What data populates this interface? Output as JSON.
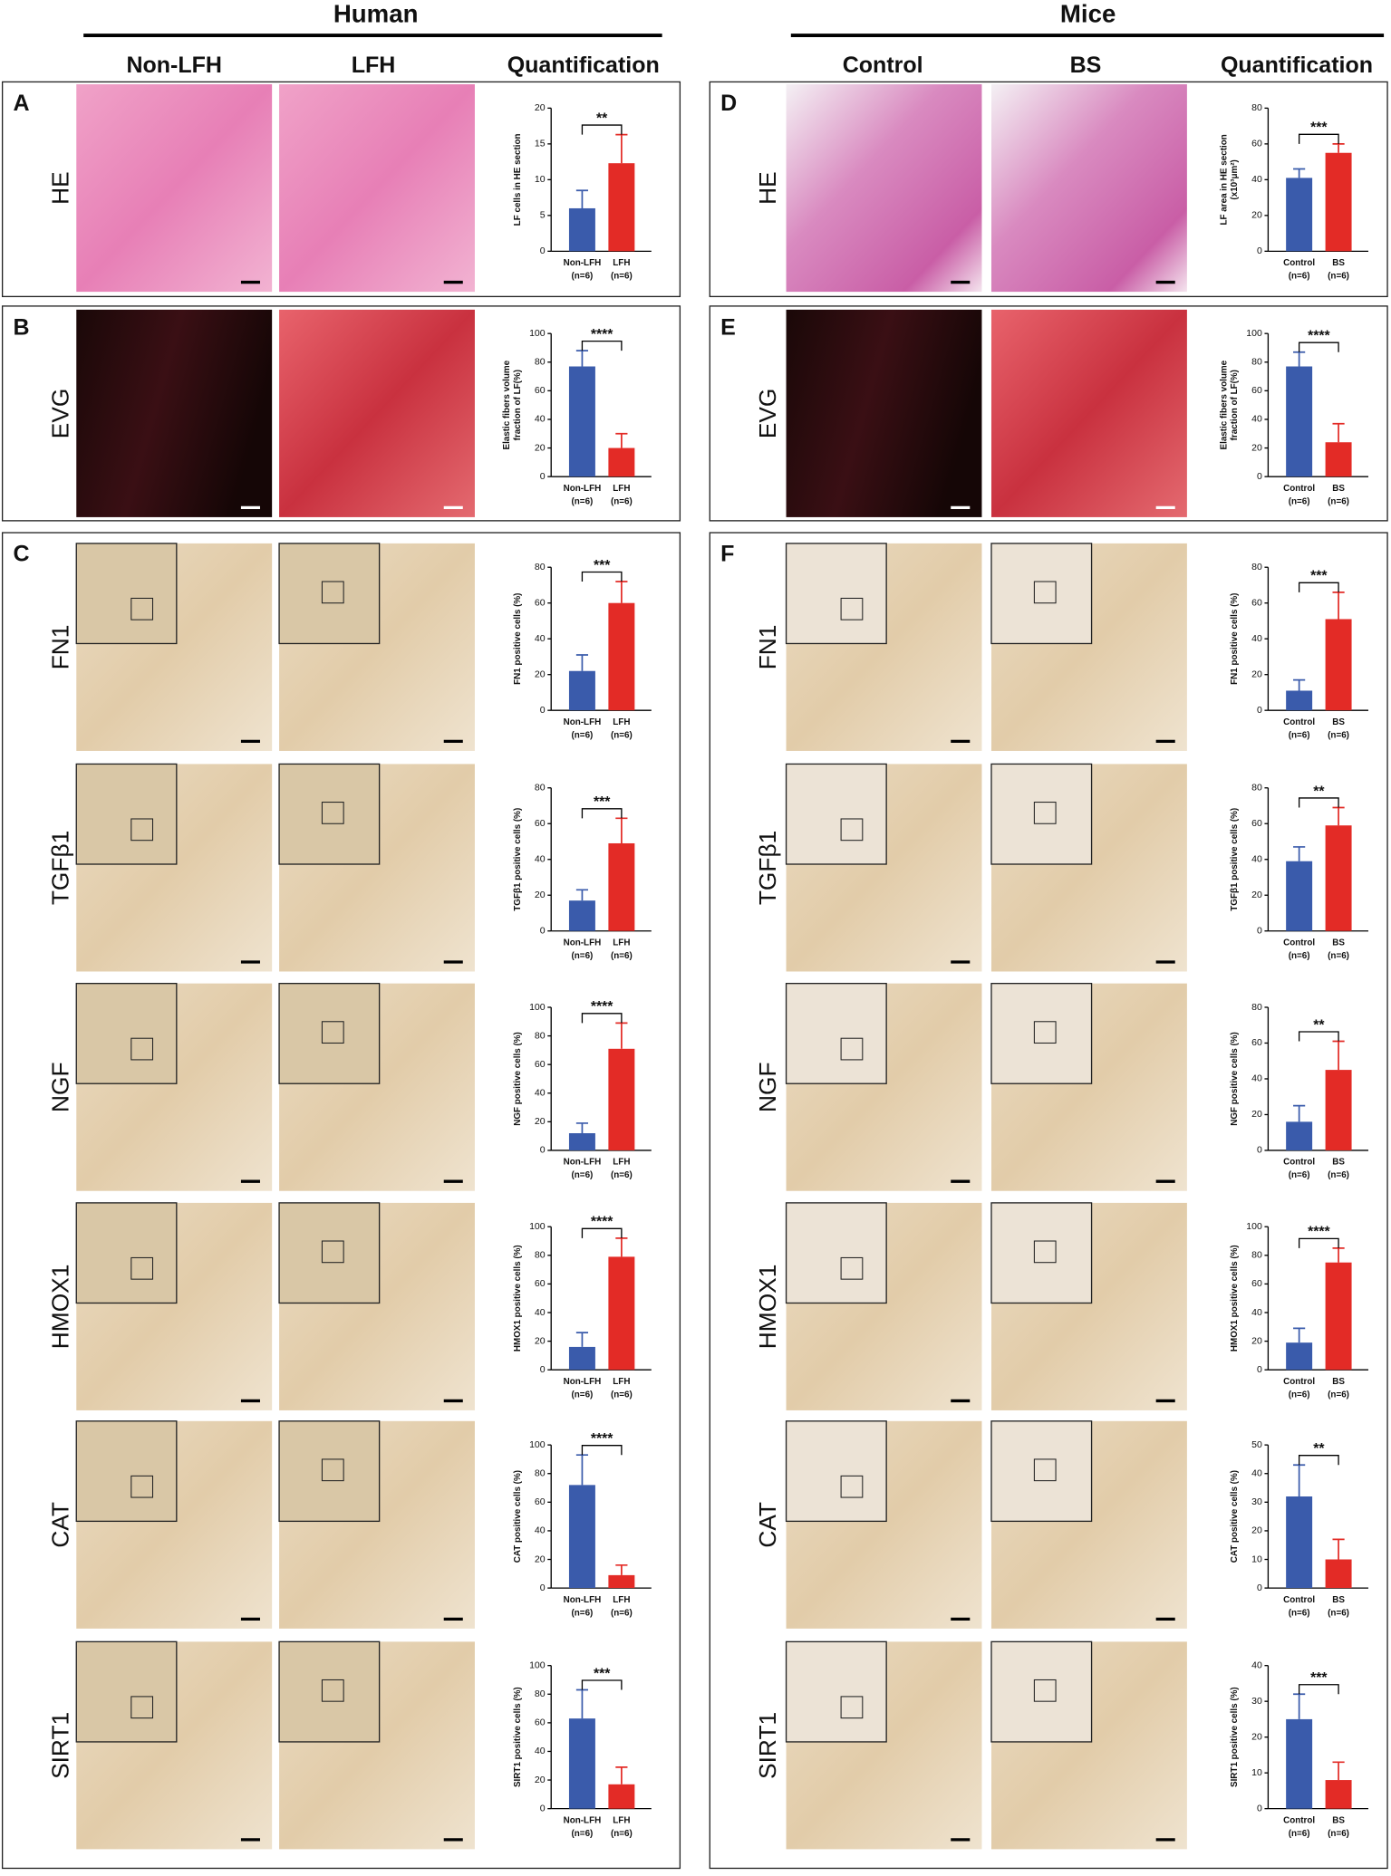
{
  "groups": [
    {
      "title": "Human",
      "columns": [
        "Non-LFH",
        "LFH",
        "Quantification"
      ]
    },
    {
      "title": "Mice",
      "columns": [
        "Control",
        "BS",
        "Quantification"
      ]
    }
  ],
  "panels": [
    {
      "letter": "A",
      "rows": [
        "HE"
      ]
    },
    {
      "letter": "B",
      "rows": [
        "EVG"
      ]
    },
    {
      "letter": "C",
      "rows": [
        "FN1",
        "TGFβ1",
        "NGF",
        "HMOX1",
        "CAT",
        "SIRT1"
      ]
    },
    {
      "letter": "D",
      "rows": [
        "HE"
      ]
    },
    {
      "letter": "E",
      "rows": [
        "EVG"
      ]
    },
    {
      "letter": "F",
      "rows": [
        "FN1",
        "TGFβ1",
        "NGF",
        "HMOX1",
        "CAT",
        "SIRT1"
      ]
    }
  ],
  "chart_data": [
    {
      "type": "bar",
      "y_label": [
        "LF cells in HE section"
      ],
      "categories": [
        "Non-LFH",
        "LFH"
      ],
      "n_labels": [
        "(n=6)",
        "(n=6)"
      ],
      "values": [
        6,
        12.3
      ],
      "errors": [
        2.5,
        4
      ],
      "colors": [
        "#3a5bab",
        "#e32b26"
      ],
      "significance": "**",
      "ylim": [
        0,
        20
      ],
      "yticks": [
        0,
        5,
        10,
        15,
        20
      ]
    },
    {
      "type": "bar",
      "y_label": [
        "Elastic fibers volume",
        "fraction of LF(%)"
      ],
      "categories": [
        "Non-LFH",
        "LFH"
      ],
      "n_labels": [
        "(n=6)",
        "(n=6)"
      ],
      "values": [
        77,
        20
      ],
      "errors": [
        11,
        10
      ],
      "colors": [
        "#3a5bab",
        "#e32b26"
      ],
      "significance": "****",
      "ylim": [
        0,
        100
      ],
      "yticks": [
        0,
        20,
        40,
        60,
        80,
        100
      ]
    },
    {
      "type": "bar",
      "y_label": [
        "FN1 positive cells (%)"
      ],
      "categories": [
        "Non-LFH",
        "LFH"
      ],
      "n_labels": [
        "(n=6)",
        "(n=6)"
      ],
      "values": [
        22,
        60
      ],
      "errors": [
        9,
        12
      ],
      "colors": [
        "#3a5bab",
        "#e32b26"
      ],
      "significance": "***",
      "ylim": [
        0,
        80
      ],
      "yticks": [
        0,
        20,
        40,
        60,
        80
      ]
    },
    {
      "type": "bar",
      "y_label": [
        "TGFβ1 positive cells (%)"
      ],
      "categories": [
        "Non-LFH",
        "LFH"
      ],
      "n_labels": [
        "(n=6)",
        "(n=6)"
      ],
      "values": [
        17,
        49
      ],
      "errors": [
        6,
        14
      ],
      "colors": [
        "#3a5bab",
        "#e32b26"
      ],
      "significance": "***",
      "ylim": [
        0,
        80
      ],
      "yticks": [
        0,
        20,
        40,
        60,
        80
      ]
    },
    {
      "type": "bar",
      "y_label": [
        "NGF positive cells (%)"
      ],
      "categories": [
        "Non-LFH",
        "LFH"
      ],
      "n_labels": [
        "(n=6)",
        "(n=6)"
      ],
      "values": [
        12,
        71
      ],
      "errors": [
        7,
        18
      ],
      "colors": [
        "#3a5bab",
        "#e32b26"
      ],
      "significance": "****",
      "ylim": [
        0,
        100
      ],
      "yticks": [
        0,
        20,
        40,
        60,
        80,
        100
      ]
    },
    {
      "type": "bar",
      "y_label": [
        "HMOX1 positive cells (%)"
      ],
      "categories": [
        "Non-LFH",
        "LFH"
      ],
      "n_labels": [
        "(n=6)",
        "(n=6)"
      ],
      "values": [
        16,
        79
      ],
      "errors": [
        10,
        13
      ],
      "colors": [
        "#3a5bab",
        "#e32b26"
      ],
      "significance": "****",
      "ylim": [
        0,
        100
      ],
      "yticks": [
        0,
        20,
        40,
        60,
        80,
        100
      ]
    },
    {
      "type": "bar",
      "y_label": [
        "CAT positive cells (%)"
      ],
      "categories": [
        "Non-LFH",
        "LFH"
      ],
      "n_labels": [
        "(n=6)",
        "(n=6)"
      ],
      "values": [
        72,
        9
      ],
      "errors": [
        21,
        7
      ],
      "colors": [
        "#3a5bab",
        "#e32b26"
      ],
      "significance": "****",
      "ylim": [
        0,
        100
      ],
      "yticks": [
        0,
        20,
        40,
        60,
        80,
        100
      ]
    },
    {
      "type": "bar",
      "y_label": [
        "SIRT1 positive cells (%)"
      ],
      "categories": [
        "Non-LFH",
        "LFH"
      ],
      "n_labels": [
        "(n=6)",
        "(n=6)"
      ],
      "values": [
        63,
        17
      ],
      "errors": [
        20,
        12
      ],
      "colors": [
        "#3a5bab",
        "#e32b26"
      ],
      "significance": "***",
      "ylim": [
        0,
        100
      ],
      "yticks": [
        0,
        20,
        40,
        60,
        80,
        100
      ]
    },
    {
      "type": "bar",
      "y_label": [
        "LF area in HE section",
        "(x10³μm²)"
      ],
      "categories": [
        "Control",
        "BS"
      ],
      "n_labels": [
        "(n=6)",
        "(n=6)"
      ],
      "values": [
        41,
        55
      ],
      "errors": [
        5,
        5
      ],
      "colors": [
        "#3a5bab",
        "#e32b26"
      ],
      "significance": "***",
      "ylim": [
        0,
        80
      ],
      "yticks": [
        0,
        20,
        40,
        60,
        80
      ]
    },
    {
      "type": "bar",
      "y_label": [
        "Elastic fibers volume",
        "fraction of LF(%)"
      ],
      "categories": [
        "Control",
        "BS"
      ],
      "n_labels": [
        "(n=6)",
        "(n=6)"
      ],
      "values": [
        77,
        24
      ],
      "errors": [
        10,
        13
      ],
      "colors": [
        "#3a5bab",
        "#e32b26"
      ],
      "significance": "****",
      "ylim": [
        0,
        100
      ],
      "yticks": [
        0,
        20,
        40,
        60,
        80,
        100
      ]
    },
    {
      "type": "bar",
      "y_label": [
        "FN1 positive cells (%)"
      ],
      "categories": [
        "Control",
        "BS"
      ],
      "n_labels": [
        "(n=6)",
        "(n=6)"
      ],
      "values": [
        11,
        51
      ],
      "errors": [
        6,
        15
      ],
      "colors": [
        "#3a5bab",
        "#e32b26"
      ],
      "significance": "***",
      "ylim": [
        0,
        80
      ],
      "yticks": [
        0,
        20,
        40,
        60,
        80
      ]
    },
    {
      "type": "bar",
      "y_label": [
        "TGFβ1 positive cells (%)"
      ],
      "categories": [
        "Control",
        "BS"
      ],
      "n_labels": [
        "(n=6)",
        "(n=6)"
      ],
      "values": [
        39,
        59
      ],
      "errors": [
        8,
        10
      ],
      "colors": [
        "#3a5bab",
        "#e32b26"
      ],
      "significance": "**",
      "ylim": [
        0,
        80
      ],
      "yticks": [
        0,
        20,
        40,
        60,
        80
      ]
    },
    {
      "type": "bar",
      "y_label": [
        "NGF positive cells (%)"
      ],
      "categories": [
        "Control",
        "BS"
      ],
      "n_labels": [
        "(n=6)",
        "(n=6)"
      ],
      "values": [
        16,
        45
      ],
      "errors": [
        9,
        16
      ],
      "colors": [
        "#3a5bab",
        "#e32b26"
      ],
      "significance": "**",
      "ylim": [
        0,
        80
      ],
      "yticks": [
        0,
        20,
        40,
        60,
        80
      ]
    },
    {
      "type": "bar",
      "y_label": [
        "HMOX1 positive cells (%)"
      ],
      "categories": [
        "Control",
        "BS"
      ],
      "n_labels": [
        "(n=6)",
        "(n=6)"
      ],
      "values": [
        19,
        75
      ],
      "errors": [
        10,
        10
      ],
      "colors": [
        "#3a5bab",
        "#e32b26"
      ],
      "significance": "****",
      "ylim": [
        0,
        100
      ],
      "yticks": [
        0,
        20,
        40,
        60,
        80,
        100
      ]
    },
    {
      "type": "bar",
      "y_label": [
        "CAT positive cells (%)"
      ],
      "categories": [
        "Control",
        "BS"
      ],
      "n_labels": [
        "(n=6)",
        "(n=6)"
      ],
      "values": [
        32,
        10
      ],
      "errors": [
        11,
        7
      ],
      "colors": [
        "#3a5bab",
        "#e32b26"
      ],
      "significance": "**",
      "ylim": [
        0,
        50
      ],
      "yticks": [
        0,
        10,
        20,
        30,
        40,
        50
      ]
    },
    {
      "type": "bar",
      "y_label": [
        "SIRT1 positive cells (%)"
      ],
      "categories": [
        "Control",
        "BS"
      ],
      "n_labels": [
        "(n=6)",
        "(n=6)"
      ],
      "values": [
        25,
        8
      ],
      "errors": [
        7,
        5
      ],
      "colors": [
        "#3a5bab",
        "#e32b26"
      ],
      "significance": "***",
      "ylim": [
        0,
        40
      ],
      "yticks": [
        0,
        10,
        20,
        30,
        40
      ]
    }
  ]
}
